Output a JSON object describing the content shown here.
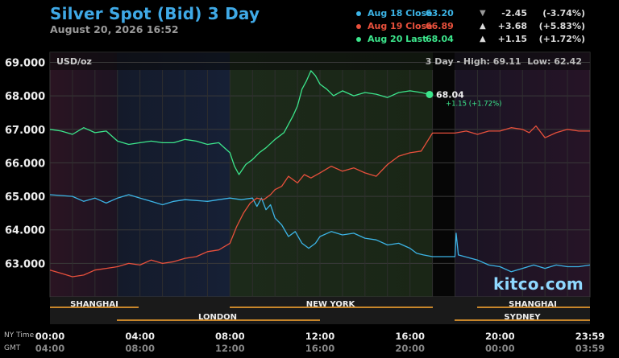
{
  "header": {
    "title": "Silver Spot (Bid) 3 Day",
    "timestamp": "August 20, 2026 16:52"
  },
  "legend": [
    {
      "label": "Aug 18 Close",
      "value": "63.20",
      "arrow": "▼",
      "change": "-2.45",
      "pct": "(-3.74%)",
      "color": "#3cb4e6",
      "arrow_color": "#999999"
    },
    {
      "label": "Aug 19 Close",
      "value": "66.89",
      "arrow": "▲",
      "change": "+3.68",
      "pct": "(+5.83%)",
      "color": "#e8503c",
      "arrow_color": "#dddddd"
    },
    {
      "label": "Aug 20 Last",
      "value": "68.04",
      "arrow": "▲",
      "change": "+1.15",
      "pct": "(+1.72%)",
      "color": "#3ce68c",
      "arrow_color": "#dddddd"
    }
  ],
  "plot": {
    "unit_label": "USD/oz",
    "range_text": "3 Day - High: 69.11  Low: 62.42",
    "last_label": "68.04",
    "last_change": "+1.15 (+1.72%)",
    "watermark": "kitco.com"
  },
  "sessions": {
    "row1": [
      "SHANGHAI",
      "NEW YORK",
      "SHANGHAI"
    ],
    "row2": [
      "LONDON",
      "SYDNEY"
    ]
  },
  "time_axis": {
    "row1_label": "NY Time",
    "row2_label": "GMT",
    "ny": [
      "00:00",
      "04:00",
      "08:00",
      "12:00",
      "16:00",
      "20:00",
      "23:59"
    ],
    "gmt": [
      "04:00",
      "08:00",
      "12:00",
      "16:00",
      "20:00",
      "00:00",
      "03:59"
    ]
  },
  "colors": {
    "title": "#3fa9e6",
    "session_bar": "#c8862a",
    "series_aug18": "#3cb4e6",
    "series_aug19": "#e8503c",
    "series_aug20": "#3ce68c",
    "watermark": "#8fd8ff"
  },
  "chart_data": {
    "type": "line",
    "title": "Silver Spot (Bid) 3 Day",
    "ylabel": "USD/oz",
    "ylim": [
      62.0,
      69.3
    ],
    "y_ticks": [
      "63.000",
      "64.000",
      "65.000",
      "66.000",
      "67.000",
      "68.000",
      "69.000"
    ],
    "x_unit": "NY time (hours)",
    "xlim": [
      0,
      24
    ],
    "x_ticks": [
      "00:00",
      "04:00",
      "08:00",
      "12:00",
      "16:00",
      "20:00",
      "23:59"
    ],
    "grid": true,
    "legend_position": "top-right",
    "high": 69.11,
    "low": 62.42,
    "series": [
      {
        "name": "Aug 18 Close",
        "color": "#3cb4e6",
        "points": [
          [
            0,
            65.05
          ],
          [
            1,
            65.0
          ],
          [
            1.5,
            64.85
          ],
          [
            2,
            64.95
          ],
          [
            2.5,
            64.8
          ],
          [
            3,
            64.95
          ],
          [
            3.5,
            65.05
          ],
          [
            4,
            64.95
          ],
          [
            4.5,
            64.85
          ],
          [
            5,
            64.75
          ],
          [
            5.5,
            64.85
          ],
          [
            6,
            64.9
          ],
          [
            7,
            64.85
          ],
          [
            7.5,
            64.9
          ],
          [
            8,
            64.95
          ],
          [
            8.5,
            64.9
          ],
          [
            9,
            64.95
          ],
          [
            9.2,
            64.7
          ],
          [
            9.4,
            64.95
          ],
          [
            9.6,
            64.6
          ],
          [
            9.8,
            64.75
          ],
          [
            10,
            64.35
          ],
          [
            10.3,
            64.15
          ],
          [
            10.6,
            63.8
          ],
          [
            10.9,
            63.95
          ],
          [
            11.2,
            63.6
          ],
          [
            11.5,
            63.45
          ],
          [
            11.8,
            63.6
          ],
          [
            12,
            63.8
          ],
          [
            12.5,
            63.95
          ],
          [
            13,
            63.85
          ],
          [
            13.5,
            63.9
          ],
          [
            14,
            63.75
          ],
          [
            14.5,
            63.7
          ],
          [
            15,
            63.55
          ],
          [
            15.5,
            63.6
          ],
          [
            16,
            63.45
          ],
          [
            16.3,
            63.3
          ],
          [
            16.6,
            63.25
          ],
          [
            17,
            63.2
          ],
          [
            18,
            63.2
          ],
          [
            18.05,
            63.9
          ],
          [
            18.15,
            63.25
          ],
          [
            19,
            63.1
          ],
          [
            19.5,
            62.95
          ],
          [
            20,
            62.9
          ],
          [
            20.5,
            62.75
          ],
          [
            21,
            62.85
          ],
          [
            21.5,
            62.95
          ],
          [
            22,
            62.85
          ],
          [
            22.5,
            62.95
          ],
          [
            23,
            62.9
          ],
          [
            23.5,
            62.9
          ],
          [
            24,
            62.95
          ]
        ]
      },
      {
        "name": "Aug 19 Close",
        "color": "#e8503c",
        "points": [
          [
            0,
            62.8
          ],
          [
            0.5,
            62.7
          ],
          [
            1,
            62.6
          ],
          [
            1.5,
            62.65
          ],
          [
            2,
            62.8
          ],
          [
            2.5,
            62.85
          ],
          [
            3,
            62.9
          ],
          [
            3.5,
            63.0
          ],
          [
            4,
            62.95
          ],
          [
            4.5,
            63.1
          ],
          [
            5,
            63.0
          ],
          [
            5.5,
            63.05
          ],
          [
            6,
            63.15
          ],
          [
            6.5,
            63.2
          ],
          [
            7,
            63.35
          ],
          [
            7.5,
            63.4
          ],
          [
            8,
            63.6
          ],
          [
            8.3,
            64.1
          ],
          [
            8.6,
            64.5
          ],
          [
            8.9,
            64.8
          ],
          [
            9.2,
            64.95
          ],
          [
            9.5,
            64.9
          ],
          [
            9.8,
            65.05
          ],
          [
            10,
            65.2
          ],
          [
            10.3,
            65.3
          ],
          [
            10.6,
            65.6
          ],
          [
            11,
            65.4
          ],
          [
            11.3,
            65.65
          ],
          [
            11.6,
            65.55
          ],
          [
            12,
            65.7
          ],
          [
            12.5,
            65.9
          ],
          [
            13,
            65.75
          ],
          [
            13.5,
            65.85
          ],
          [
            14,
            65.7
          ],
          [
            14.5,
            65.6
          ],
          [
            15,
            65.95
          ],
          [
            15.5,
            66.2
          ],
          [
            16,
            66.3
          ],
          [
            16.5,
            66.35
          ],
          [
            17,
            66.89
          ],
          [
            18,
            66.89
          ],
          [
            18.5,
            66.95
          ],
          [
            19,
            66.85
          ],
          [
            19.5,
            66.95
          ],
          [
            20,
            66.95
          ],
          [
            20.5,
            67.05
          ],
          [
            21,
            67.0
          ],
          [
            21.3,
            66.9
          ],
          [
            21.6,
            67.1
          ],
          [
            22,
            66.75
          ],
          [
            22.5,
            66.9
          ],
          [
            23,
            67.0
          ],
          [
            23.5,
            66.95
          ],
          [
            24,
            66.95
          ]
        ]
      },
      {
        "name": "Aug 20 Last",
        "color": "#3ce68c",
        "points": [
          [
            0,
            67.0
          ],
          [
            0.5,
            66.95
          ],
          [
            1,
            66.85
          ],
          [
            1.5,
            67.05
          ],
          [
            2,
            66.9
          ],
          [
            2.5,
            66.95
          ],
          [
            3,
            66.65
          ],
          [
            3.5,
            66.55
          ],
          [
            4,
            66.6
          ],
          [
            4.5,
            66.65
          ],
          [
            5,
            66.6
          ],
          [
            5.5,
            66.6
          ],
          [
            6,
            66.7
          ],
          [
            6.5,
            66.65
          ],
          [
            7,
            66.55
          ],
          [
            7.5,
            66.6
          ],
          [
            8,
            66.3
          ],
          [
            8.2,
            65.9
          ],
          [
            8.4,
            65.65
          ],
          [
            8.7,
            65.95
          ],
          [
            9,
            66.1
          ],
          [
            9.3,
            66.3
          ],
          [
            9.6,
            66.45
          ],
          [
            10,
            66.7
          ],
          [
            10.4,
            66.9
          ],
          [
            10.8,
            67.4
          ],
          [
            11,
            67.7
          ],
          [
            11.2,
            68.2
          ],
          [
            11.4,
            68.45
          ],
          [
            11.6,
            68.75
          ],
          [
            11.8,
            68.6
          ],
          [
            12,
            68.35
          ],
          [
            12.3,
            68.2
          ],
          [
            12.6,
            68.0
          ],
          [
            13,
            68.15
          ],
          [
            13.5,
            68.0
          ],
          [
            14,
            68.1
          ],
          [
            14.5,
            68.05
          ],
          [
            15,
            67.95
          ],
          [
            15.5,
            68.1
          ],
          [
            16,
            68.15
          ],
          [
            16.5,
            68.1
          ],
          [
            16.87,
            68.04
          ]
        ]
      }
    ]
  }
}
